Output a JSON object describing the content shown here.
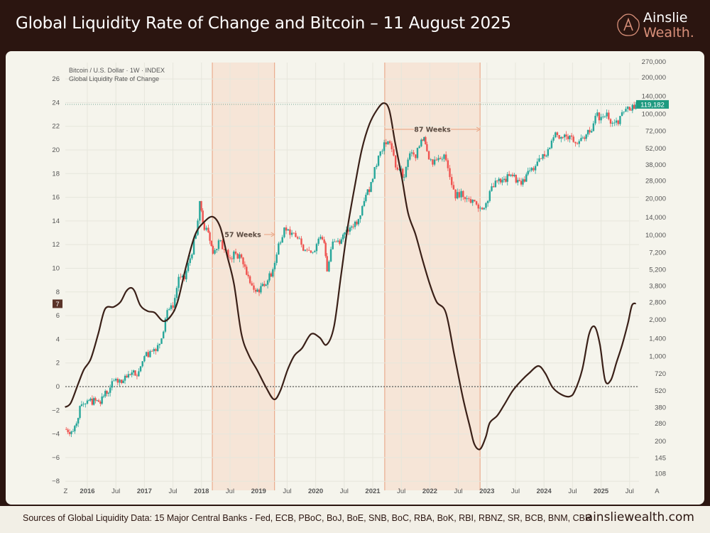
{
  "header": {
    "title": "Global Liquidity Rate of Change and Bitcoin – 11 August 2025"
  },
  "logo": {
    "line1": "Ainslie",
    "line2": "Wealth."
  },
  "footer": {
    "sources": "Sources of Global Liquidity Data: 15 Major Central Banks - Fed, ECB, PBoC, BoJ, BoE, SNB, BoC, RBA, BoK, RBI, RBNZ, SR, BCB, BNM, CBR",
    "site": "ainsliewealth.com"
  },
  "colors": {
    "header_bg": "#2b1510",
    "panel_bg": "#f5f4ec",
    "liquidity_line": "#3a2018",
    "candle_up": "#26a69a",
    "candle_down": "#ef5350",
    "shade": "#f6d9c6",
    "shade_edge": "#e8a07e",
    "price_tag": "#1f9a80",
    "liquidity_tag": "#5a3328"
  },
  "chart_data": {
    "type": "line",
    "legend": [
      "Bitcoin / U.S. Dollar · 1W · INDEX",
      "Global Liquidity Rate of Change"
    ],
    "legend_position": "top-left",
    "grid": true,
    "x_ticks": [
      {
        "label": "Z",
        "year": 2015.62,
        "bold": false
      },
      {
        "label": "2016",
        "year": 2016.0,
        "bold": true
      },
      {
        "label": "Jul",
        "year": 2016.5,
        "bold": false
      },
      {
        "label": "2017",
        "year": 2017.0,
        "bold": true
      },
      {
        "label": "Jul",
        "year": 2017.5,
        "bold": false
      },
      {
        "label": "2018",
        "year": 2018.0,
        "bold": true
      },
      {
        "label": "Jul",
        "year": 2018.5,
        "bold": false
      },
      {
        "label": "2019",
        "year": 2019.0,
        "bold": true
      },
      {
        "label": "Jul",
        "year": 2019.5,
        "bold": false
      },
      {
        "label": "2020",
        "year": 2020.0,
        "bold": true
      },
      {
        "label": "Jul",
        "year": 2020.5,
        "bold": false
      },
      {
        "label": "2021",
        "year": 2021.0,
        "bold": true
      },
      {
        "label": "Jul",
        "year": 2021.5,
        "bold": false
      },
      {
        "label": "2022",
        "year": 2022.0,
        "bold": true
      },
      {
        "label": "Jul",
        "year": 2022.5,
        "bold": false
      },
      {
        "label": "2023",
        "year": 2023.0,
        "bold": true
      },
      {
        "label": "Jul",
        "year": 2023.5,
        "bold": false
      },
      {
        "label": "2024",
        "year": 2024.0,
        "bold": true
      },
      {
        "label": "Jul",
        "year": 2024.5,
        "bold": false
      },
      {
        "label": "2025",
        "year": 2025.0,
        "bold": true
      },
      {
        "label": "Jul",
        "year": 2025.5,
        "bold": false
      },
      {
        "label": "A",
        "year": 2025.98,
        "bold": false
      }
    ],
    "left_axis": {
      "ylim": [
        -8,
        26
      ],
      "ticks": [
        26,
        24,
        22,
        20,
        18,
        16,
        14,
        12,
        10,
        8,
        6,
        4,
        2,
        0,
        -2,
        -4,
        -6,
        -8
      ],
      "tick_labels": [
        "26",
        "24",
        "22",
        "20",
        "18",
        "16",
        "14",
        "12",
        "10",
        "8",
        "6",
        "4",
        "2",
        "0",
        "−2",
        "−4",
        "−6",
        "−8"
      ],
      "current_value_label": "7",
      "current_value": 7
    },
    "right_axis": {
      "scale": "log",
      "ticks": [
        270000,
        200000,
        140000,
        100000,
        72000,
        52000,
        38000,
        28000,
        20000,
        14000,
        10000,
        7200,
        5200,
        3800,
        2800,
        2000,
        1400,
        1000,
        720,
        520,
        380,
        280,
        200,
        145,
        108
      ],
      "tick_labels": [
        "270,000",
        "200,000",
        "140,000",
        "100,000",
        "72,000",
        "52,000",
        "38,000",
        "28,000",
        "20,000",
        "14,000",
        "10,000",
        "7,200",
        "5,200",
        "3,800",
        "2,800",
        "2,000",
        "1,400",
        "1,000",
        "720",
        "520",
        "380",
        "280",
        "200",
        "145",
        "108"
      ],
      "last_price_label": "119,182",
      "last_price": 119182
    },
    "annotations": [
      {
        "label": "57 Weeks",
        "start": 2018.19,
        "end": 2019.28
      },
      {
        "label": "87 Weeks",
        "start": 2021.21,
        "end": 2022.88
      }
    ],
    "series": [
      {
        "name": "Global Liquidity Rate of Change",
        "axis": "left",
        "points": [
          [
            2015.61,
            -1.74
          ],
          [
            2015.71,
            -1.38
          ],
          [
            2015.84,
            0.24
          ],
          [
            2015.94,
            1.44
          ],
          [
            2016.06,
            2.34
          ],
          [
            2016.19,
            4.44
          ],
          [
            2016.31,
            6.55
          ],
          [
            2016.46,
            6.73
          ],
          [
            2016.58,
            7.15
          ],
          [
            2016.68,
            8.05
          ],
          [
            2016.76,
            8.35
          ],
          [
            2016.83,
            8.05
          ],
          [
            2016.93,
            6.85
          ],
          [
            2017.06,
            6.37
          ],
          [
            2017.18,
            6.25
          ],
          [
            2017.33,
            5.53
          ],
          [
            2017.46,
            5.95
          ],
          [
            2017.58,
            7.15
          ],
          [
            2017.73,
            10.15
          ],
          [
            2017.89,
            12.85
          ],
          [
            2018.05,
            13.93
          ],
          [
            2018.2,
            14.35
          ],
          [
            2018.33,
            13.45
          ],
          [
            2018.45,
            11.05
          ],
          [
            2018.57,
            8.65
          ],
          [
            2018.7,
            4.44
          ],
          [
            2018.83,
            2.64
          ],
          [
            2018.97,
            1.44
          ],
          [
            2019.13,
            -0.06
          ],
          [
            2019.27,
            -1.08
          ],
          [
            2019.38,
            -0.36
          ],
          [
            2019.51,
            1.44
          ],
          [
            2019.63,
            2.64
          ],
          [
            2019.76,
            3.24
          ],
          [
            2019.92,
            4.44
          ],
          [
            2020.07,
            4.14
          ],
          [
            2020.19,
            3.54
          ],
          [
            2020.32,
            5.05
          ],
          [
            2020.44,
            9.25
          ],
          [
            2020.56,
            13.45
          ],
          [
            2020.69,
            17.06
          ],
          [
            2020.81,
            20.06
          ],
          [
            2020.94,
            22.16
          ],
          [
            2021.07,
            23.36
          ],
          [
            2021.19,
            23.96
          ],
          [
            2021.29,
            23.36
          ],
          [
            2021.39,
            20.66
          ],
          [
            2021.51,
            17.66
          ],
          [
            2021.62,
            14.65
          ],
          [
            2021.75,
            12.85
          ],
          [
            2021.87,
            10.75
          ],
          [
            2022.0,
            8.65
          ],
          [
            2022.12,
            7.15
          ],
          [
            2022.28,
            6.25
          ],
          [
            2022.43,
            2.64
          ],
          [
            2022.58,
            -0.96
          ],
          [
            2022.7,
            -3.36
          ],
          [
            2022.78,
            -4.86
          ],
          [
            2022.88,
            -5.29
          ],
          [
            2022.98,
            -4.26
          ],
          [
            2023.05,
            -3.06
          ],
          [
            2023.18,
            -2.46
          ],
          [
            2023.3,
            -1.56
          ],
          [
            2023.45,
            -0.36
          ],
          [
            2023.61,
            0.54
          ],
          [
            2023.74,
            1.14
          ],
          [
            2023.9,
            1.74
          ],
          [
            2024.02,
            1.14
          ],
          [
            2024.15,
            -0.06
          ],
          [
            2024.3,
            -0.66
          ],
          [
            2024.45,
            -0.84
          ],
          [
            2024.54,
            -0.36
          ],
          [
            2024.67,
            1.44
          ],
          [
            2024.79,
            4.44
          ],
          [
            2024.89,
            5.05
          ],
          [
            2024.98,
            3.54
          ],
          [
            2025.07,
            0.54
          ],
          [
            2025.17,
            0.54
          ],
          [
            2025.27,
            2.04
          ],
          [
            2025.37,
            3.54
          ],
          [
            2025.47,
            5.35
          ],
          [
            2025.54,
            6.85
          ],
          [
            2025.61,
            7.03
          ]
        ]
      },
      {
        "name": "Bitcoin / U.S. Dollar · 1W · INDEX",
        "axis": "right",
        "type": "candlestick",
        "points": [
          [
            2015.6,
            250
          ],
          [
            2015.75,
            240
          ],
          [
            2015.9,
            400
          ],
          [
            2016.0,
            430
          ],
          [
            2016.2,
            420
          ],
          [
            2016.4,
            550
          ],
          [
            2016.5,
            650
          ],
          [
            2016.6,
            600
          ],
          [
            2016.75,
            700
          ],
          [
            2016.9,
            750
          ],
          [
            2017.0,
            1000
          ],
          [
            2017.1,
            1100
          ],
          [
            2017.2,
            1100
          ],
          [
            2017.3,
            1400
          ],
          [
            2017.4,
            2400
          ],
          [
            2017.5,
            2500
          ],
          [
            2017.6,
            4500
          ],
          [
            2017.7,
            4300
          ],
          [
            2017.8,
            6400
          ],
          [
            2017.9,
            10000
          ],
          [
            2017.97,
            19000
          ],
          [
            2018.05,
            11000
          ],
          [
            2018.12,
            10500
          ],
          [
            2018.2,
            7000
          ],
          [
            2018.3,
            9000
          ],
          [
            2018.4,
            7500
          ],
          [
            2018.5,
            6400
          ],
          [
            2018.6,
            7000
          ],
          [
            2018.7,
            6500
          ],
          [
            2018.85,
            4000
          ],
          [
            2018.95,
            3400
          ],
          [
            2019.1,
            3800
          ],
          [
            2019.25,
            5200
          ],
          [
            2019.35,
            8500
          ],
          [
            2019.45,
            11500
          ],
          [
            2019.55,
            10000
          ],
          [
            2019.65,
            9600
          ],
          [
            2019.75,
            8300
          ],
          [
            2019.85,
            7500
          ],
          [
            2019.95,
            7200
          ],
          [
            2020.05,
            9300
          ],
          [
            2020.15,
            8600
          ],
          [
            2020.2,
            5000
          ],
          [
            2020.3,
            8800
          ],
          [
            2020.45,
            9200
          ],
          [
            2020.6,
            11500
          ],
          [
            2020.75,
            13500
          ],
          [
            2020.85,
            19000
          ],
          [
            2021.0,
            29000
          ],
          [
            2021.1,
            45000
          ],
          [
            2021.2,
            58000
          ],
          [
            2021.3,
            57000
          ],
          [
            2021.4,
            36000
          ],
          [
            2021.5,
            35000
          ],
          [
            2021.55,
            30000
          ],
          [
            2021.65,
            47000
          ],
          [
            2021.75,
            43000
          ],
          [
            2021.85,
            61000
          ],
          [
            2021.9,
            64000
          ],
          [
            2021.95,
            49000
          ],
          [
            2022.05,
            38000
          ],
          [
            2022.15,
            43000
          ],
          [
            2022.25,
            46000
          ],
          [
            2022.35,
            30000
          ],
          [
            2022.45,
            20000
          ],
          [
            2022.55,
            23000
          ],
          [
            2022.65,
            20000
          ],
          [
            2022.75,
            19500
          ],
          [
            2022.85,
            16500
          ],
          [
            2022.95,
            16700
          ],
          [
            2023.05,
            23000
          ],
          [
            2023.15,
            28000
          ],
          [
            2023.3,
            29000
          ],
          [
            2023.45,
            30500
          ],
          [
            2023.6,
            26000
          ],
          [
            2023.75,
            34000
          ],
          [
            2023.85,
            37000
          ],
          [
            2023.95,
            42500
          ],
          [
            2024.1,
            52000
          ],
          [
            2024.2,
            70000
          ],
          [
            2024.3,
            64000
          ],
          [
            2024.45,
            66000
          ],
          [
            2024.55,
            57000
          ],
          [
            2024.65,
            63000
          ],
          [
            2024.8,
            70000
          ],
          [
            2024.9,
            96000
          ],
          [
            2025.0,
            94000
          ],
          [
            2025.1,
            102000
          ],
          [
            2025.2,
            84000
          ],
          [
            2025.3,
            82000
          ],
          [
            2025.4,
            104000
          ],
          [
            2025.5,
            107000
          ],
          [
            2025.55,
            118000
          ],
          [
            2025.61,
            119182
          ]
        ]
      }
    ]
  }
}
